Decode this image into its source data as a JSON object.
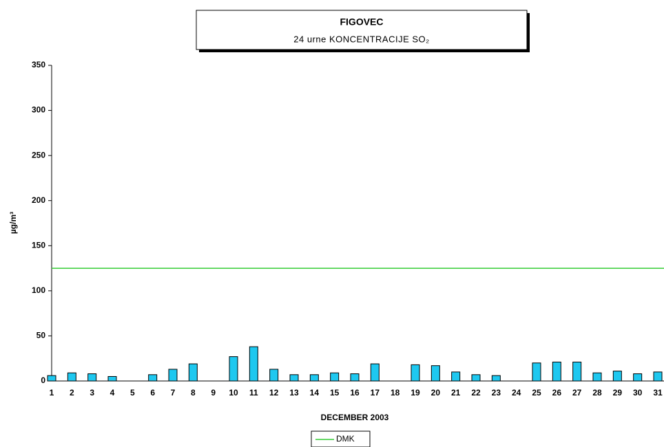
{
  "chart_data": {
    "type": "bar",
    "title": "FIGOVEC",
    "subtitle": "24 urne KONCENTRACIJE SO₂",
    "y_label": "µg/m³",
    "x_label": "DECEMBER 2003",
    "categories": [
      "1",
      "2",
      "3",
      "4",
      "5",
      "6",
      "7",
      "8",
      "9",
      "10",
      "11",
      "12",
      "13",
      "14",
      "15",
      "16",
      "17",
      "18",
      "19",
      "20",
      "21",
      "22",
      "23",
      "24",
      "25",
      "26",
      "27",
      "28",
      "29",
      "30",
      "31"
    ],
    "values": [
      6,
      9,
      8,
      5,
      null,
      7,
      13,
      19,
      null,
      27,
      38,
      13,
      7,
      7,
      9,
      8,
      19,
      null,
      18,
      17,
      10,
      7,
      6,
      null,
      20,
      21,
      21,
      9,
      11,
      8,
      10
    ],
    "color": "#1ec8f0",
    "threshold": {
      "name": "DMK",
      "value": 125,
      "color": "#33cc33"
    },
    "ylim": [
      0,
      350
    ],
    "yticks": [
      0,
      50,
      100,
      150,
      200,
      250,
      300,
      350
    ]
  }
}
